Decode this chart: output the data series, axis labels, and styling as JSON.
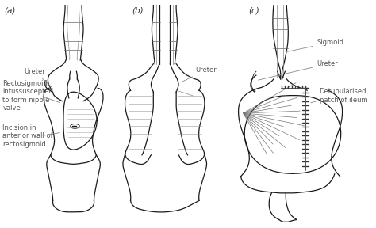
{
  "background_color": "#ffffff",
  "line_color": "#1a1a1a",
  "label_color": "#555555",
  "fig_width": 4.74,
  "fig_height": 2.88,
  "dpi": 100,
  "labels": {
    "a": "(a)",
    "b": "(b)",
    "c": "(c)",
    "ureter_a": "Ureter",
    "rectosigmoid": "Rectosigmoid\nintussuscepted\nto form nipple\nvalve",
    "incision": "Incision in\nanterior wall of\nrectosigmoid",
    "ureter_b": "Ureter",
    "sigmoid": "Sigmoid",
    "ureter_c": "Ureter",
    "detubularised": "Detubularised\npatch of ileum"
  }
}
